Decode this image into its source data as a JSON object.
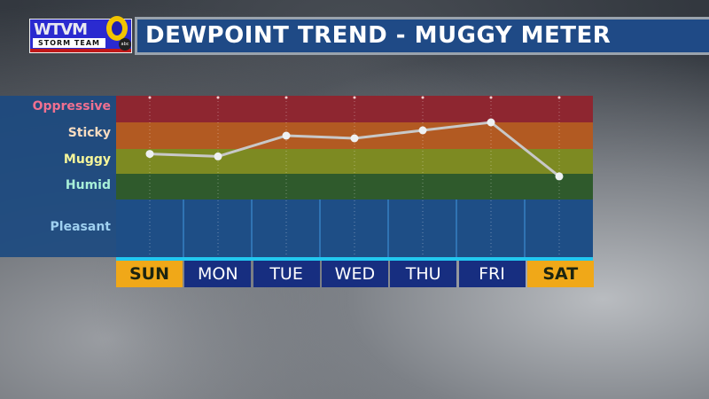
{
  "logo": {
    "text": "WTVM",
    "subtext": "STORM TEAM",
    "channel": "9",
    "network": "abc"
  },
  "header": {
    "title": "DEWPOINT TREND - MUGGY METER"
  },
  "chart_data": {
    "type": "line",
    "title": "DEWPOINT TREND - MUGGY METER",
    "categories": [
      "SUN",
      "MON",
      "TUE",
      "WED",
      "THU",
      "FRI",
      "SAT"
    ],
    "highlighted_days": [
      "SUN",
      "SAT"
    ],
    "levels": [
      {
        "name": "Pleasant",
        "color": "#1e4e86",
        "text_color": "#9fd0f0",
        "range": [
          0,
          1
        ]
      },
      {
        "name": "Humid",
        "color": "#2f5a2c",
        "text_color": "#a8f0d8",
        "range": [
          1,
          2
        ]
      },
      {
        "name": "Muggy",
        "color": "#7d8a22",
        "text_color": "#f5f59a",
        "range": [
          2,
          3
        ]
      },
      {
        "name": "Sticky",
        "color": "#b25a22",
        "text_color": "#f8dcc0",
        "range": [
          3,
          4
        ]
      },
      {
        "name": "Oppressive",
        "color": "#8e2630",
        "text_color": "#f07090",
        "range": [
          4,
          5
        ]
      }
    ],
    "values": [
      2.8,
      2.7,
      3.5,
      3.4,
      3.7,
      4.0,
      1.9
    ],
    "ylim": [
      0,
      5
    ],
    "grid": true
  }
}
